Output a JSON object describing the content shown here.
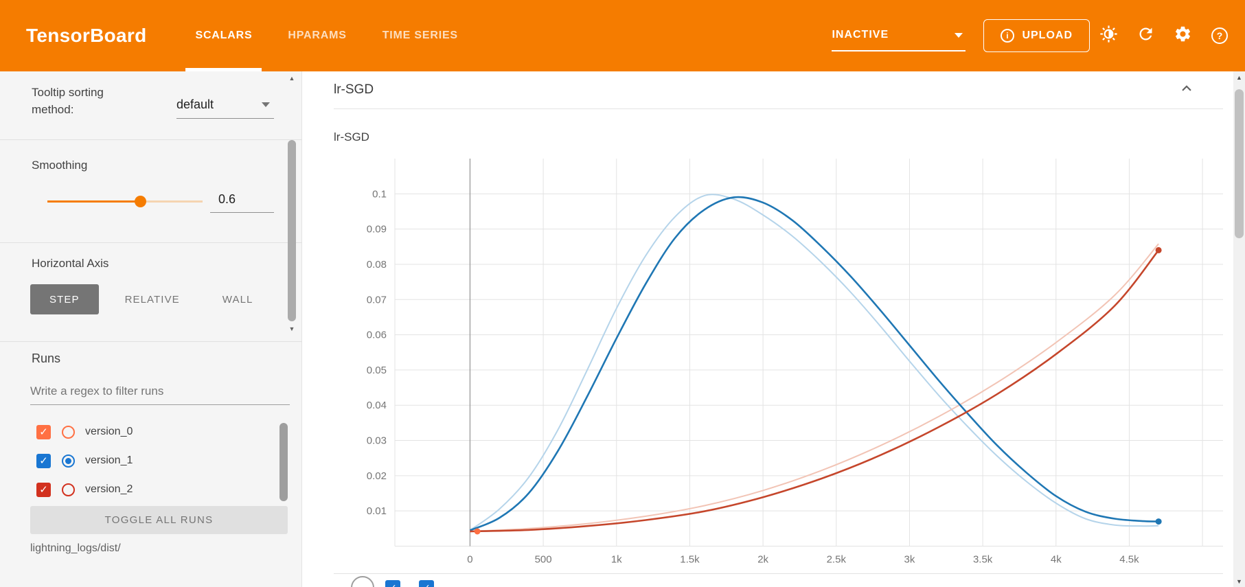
{
  "colors": {
    "header_bg": "#f57c00",
    "accent": "#f57c00",
    "sidebar_bg": "#f5f5f5",
    "step_button_bg": "#757575",
    "grid_line": "#e3e3e3",
    "zero_line": "#9e9e9e",
    "tick_label": "#757575"
  },
  "header": {
    "title": "TensorBoard",
    "tabs": [
      {
        "label": "SCALARS",
        "active": true
      },
      {
        "label": "HPARAMS",
        "active": false
      },
      {
        "label": "TIME SERIES",
        "active": false
      }
    ],
    "status_value": "INACTIVE",
    "upload_label": "UPLOAD"
  },
  "sidebar": {
    "tooltip_sorting_label": "Tooltip sorting method:",
    "tooltip_sorting_value": "default",
    "smoothing_label": "Smoothing",
    "smoothing_value": "0.6",
    "horizontal_axis_label": "Horizontal Axis",
    "axis_modes": [
      {
        "label": "STEP",
        "active": true
      },
      {
        "label": "RELATIVE",
        "active": false
      },
      {
        "label": "WALL",
        "active": false
      }
    ],
    "runs_title": "Runs",
    "runs_filter_placeholder": "Write a regex to filter runs",
    "runs": [
      {
        "name": "version_0",
        "color": "#ff7043",
        "checked": true,
        "radio_selected": false
      },
      {
        "name": "version_1",
        "color": "#1976d2",
        "checked": true,
        "radio_selected": true
      },
      {
        "name": "version_2",
        "color": "#d2311e",
        "checked": true,
        "radio_selected": false
      }
    ],
    "toggle_all_label": "TOGGLE ALL RUNS",
    "logdir": "lightning_logs/dist/"
  },
  "main": {
    "group_title": "lr-SGD"
  },
  "chart_data": {
    "type": "line",
    "title": "lr-SGD",
    "xlabel": "",
    "ylabel": "",
    "xlim": [
      -513,
      5140
    ],
    "ylim": [
      0,
      0.11
    ],
    "grid": true,
    "legend": "none",
    "x_ticks": [
      {
        "value": 0,
        "label": "0"
      },
      {
        "value": 500,
        "label": "500"
      },
      {
        "value": 1000,
        "label": "1k"
      },
      {
        "value": 1500,
        "label": "1.5k"
      },
      {
        "value": 2000,
        "label": "2k"
      },
      {
        "value": 2500,
        "label": "2.5k"
      },
      {
        "value": 3000,
        "label": "3k"
      },
      {
        "value": 3500,
        "label": "3.5k"
      },
      {
        "value": 4000,
        "label": "4k"
      },
      {
        "value": 4500,
        "label": "4.5k"
      },
      {
        "value": 5000,
        "label": ""
      }
    ],
    "y_ticks": [
      {
        "value": 0.01,
        "label": "0.01"
      },
      {
        "value": 0.02,
        "label": "0.02"
      },
      {
        "value": 0.03,
        "label": "0.03"
      },
      {
        "value": 0.04,
        "label": "0.04"
      },
      {
        "value": 0.05,
        "label": "0.05"
      },
      {
        "value": 0.06,
        "label": "0.06"
      },
      {
        "value": 0.07,
        "label": "0.07"
      },
      {
        "value": 0.08,
        "label": "0.08"
      },
      {
        "value": 0.09,
        "label": "0.09"
      },
      {
        "value": 0.1,
        "label": "0.1"
      }
    ],
    "series": [
      {
        "name": "version_0",
        "color": "#ff7043",
        "light_color": "#ffccbc",
        "smoothed": [
          [
            50,
            0.0042
          ]
        ],
        "raw": [
          [
            50,
            0.0042
          ]
        ]
      },
      {
        "name": "version_1",
        "color": "#1f77b4",
        "light_color": "#b5d4ea",
        "smoothed": [
          [
            0,
            0.0045
          ],
          [
            200,
            0.008
          ],
          [
            400,
            0.015
          ],
          [
            600,
            0.027
          ],
          [
            800,
            0.0425
          ],
          [
            1000,
            0.059
          ],
          [
            1200,
            0.0745
          ],
          [
            1400,
            0.0875
          ],
          [
            1600,
            0.0955
          ],
          [
            1800,
            0.099
          ],
          [
            2000,
            0.0975
          ],
          [
            2200,
            0.0925
          ],
          [
            2400,
            0.085
          ],
          [
            2600,
            0.0765
          ],
          [
            2800,
            0.067
          ],
          [
            3000,
            0.057
          ],
          [
            3200,
            0.047
          ],
          [
            3400,
            0.0375
          ],
          [
            3600,
            0.0285
          ],
          [
            3800,
            0.0208
          ],
          [
            4000,
            0.0142
          ],
          [
            4200,
            0.0098
          ],
          [
            4400,
            0.0078
          ],
          [
            4600,
            0.0071
          ],
          [
            4700,
            0.007
          ]
        ],
        "raw": [
          [
            0,
            0.0045
          ],
          [
            200,
            0.0105
          ],
          [
            400,
            0.0195
          ],
          [
            600,
            0.033
          ],
          [
            800,
            0.05
          ],
          [
            1000,
            0.0675
          ],
          [
            1200,
            0.0825
          ],
          [
            1400,
            0.0935
          ],
          [
            1600,
            0.0995
          ],
          [
            1800,
            0.0985
          ],
          [
            2000,
            0.094
          ],
          [
            2200,
            0.088
          ],
          [
            2400,
            0.0805
          ],
          [
            2600,
            0.072
          ],
          [
            2800,
            0.0625
          ],
          [
            3000,
            0.0525
          ],
          [
            3200,
            0.0428
          ],
          [
            3400,
            0.0338
          ],
          [
            3600,
            0.0255
          ],
          [
            3800,
            0.0183
          ],
          [
            4000,
            0.0122
          ],
          [
            4200,
            0.0078
          ],
          [
            4400,
            0.006
          ],
          [
            4600,
            0.0057
          ],
          [
            4700,
            0.0058
          ]
        ]
      },
      {
        "name": "version_2",
        "color": "#c5462b",
        "light_color": "#f2c4b5",
        "smoothed": [
          [
            0,
            0.0042
          ],
          [
            400,
            0.0046
          ],
          [
            800,
            0.0057
          ],
          [
            1200,
            0.0074
          ],
          [
            1600,
            0.0099
          ],
          [
            2000,
            0.0139
          ],
          [
            2400,
            0.0192
          ],
          [
            2800,
            0.0258
          ],
          [
            3200,
            0.0338
          ],
          [
            3600,
            0.0432
          ],
          [
            4000,
            0.0545
          ],
          [
            4400,
            0.0682
          ],
          [
            4700,
            0.084
          ]
        ],
        "raw": [
          [
            0,
            0.0042
          ],
          [
            400,
            0.005
          ],
          [
            800,
            0.0064
          ],
          [
            1200,
            0.0085
          ],
          [
            1600,
            0.0115
          ],
          [
            2000,
            0.0158
          ],
          [
            2400,
            0.0215
          ],
          [
            2800,
            0.0285
          ],
          [
            3200,
            0.0368
          ],
          [
            3600,
            0.0465
          ],
          [
            4000,
            0.0578
          ],
          [
            4400,
            0.0712
          ],
          [
            4700,
            0.0858
          ]
        ]
      }
    ]
  }
}
